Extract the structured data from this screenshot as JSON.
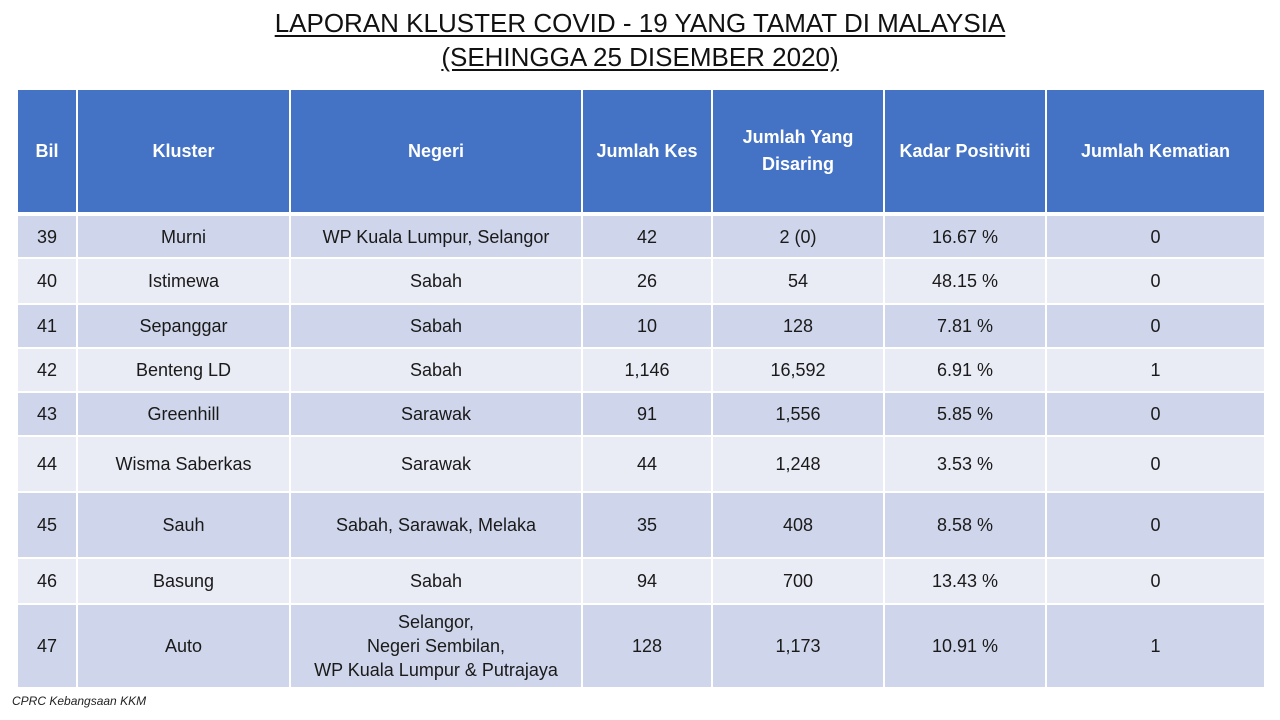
{
  "title_line1": "LAPORAN KLUSTER COVID - 19 YANG TAMAT DI MALAYSIA",
  "title_line2": "(SEHINGGA 25 DISEMBER 2020)",
  "headers": {
    "bil": "Bil",
    "kluster": "Kluster",
    "negeri": "Negeri",
    "jumlah_kes": "Jumlah Kes",
    "jumlah_disaring": "Jumlah Yang Disaring",
    "kadar_positiviti": "Kadar Positiviti",
    "jumlah_kematian": "Jumlah Kematian"
  },
  "rows": [
    {
      "bil": "39",
      "kluster": "Murni",
      "negeri": "WP Kuala Lumpur, Selangor",
      "kes": "42",
      "disaring": "2 (0)",
      "positiviti": "16.67 %",
      "kematian": "0"
    },
    {
      "bil": "40",
      "kluster": "Istimewa",
      "negeri": "Sabah",
      "kes": "26",
      "disaring": "54",
      "positiviti": "48.15 %",
      "kematian": "0"
    },
    {
      "bil": "41",
      "kluster": "Sepanggar",
      "negeri": "Sabah",
      "kes": "10",
      "disaring": "128",
      "positiviti": "7.81 %",
      "kematian": "0"
    },
    {
      "bil": "42",
      "kluster": "Benteng LD",
      "negeri": "Sabah",
      "kes": "1,146",
      "disaring": "16,592",
      "positiviti": "6.91 %",
      "kematian": "1"
    },
    {
      "bil": "43",
      "kluster": "Greenhill",
      "negeri": "Sarawak",
      "kes": "91",
      "disaring": "1,556",
      "positiviti": "5.85 %",
      "kematian": "0"
    },
    {
      "bil": "44",
      "kluster": "Wisma Saberkas",
      "negeri": "Sarawak",
      "kes": "44",
      "disaring": "1,248",
      "positiviti": "3.53 %",
      "kematian": "0"
    },
    {
      "bil": "45",
      "kluster": "Sauh",
      "negeri": "Sabah, Sarawak, Melaka",
      "kes": "35",
      "disaring": "408",
      "positiviti": "8.58 %",
      "kematian": "0"
    },
    {
      "bil": "46",
      "kluster": "Basung",
      "negeri": "Sabah",
      "kes": "94",
      "disaring": "700",
      "positiviti": "13.43 %",
      "kematian": "0"
    },
    {
      "bil": "47",
      "kluster": "Auto",
      "negeri": "Selangor,\nNegeri Sembilan,\nWP Kuala Lumpur & Putrajaya",
      "kes": "128",
      "disaring": "1,173",
      "positiviti": "10.91 %",
      "kematian": "1"
    }
  ],
  "source": "CPRC Kebangsaan KKM"
}
